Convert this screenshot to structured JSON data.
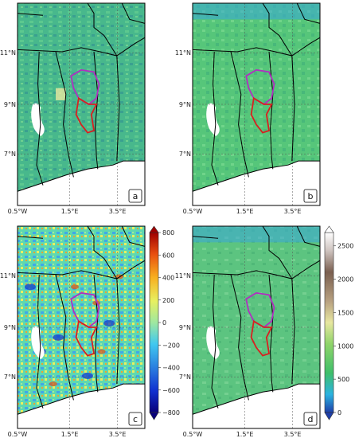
{
  "figure": {
    "panels": [
      {
        "id": "a",
        "label": "a",
        "colorscale": "elevation"
      },
      {
        "id": "b",
        "label": "b",
        "colorscale": "elevation"
      },
      {
        "id": "c",
        "label": "c",
        "colorscale": "difference"
      },
      {
        "id": "d",
        "label": "d",
        "colorscale": "elevation"
      }
    ],
    "lat_ticks": [
      "11°N",
      "9°N",
      "7°N"
    ],
    "lon_ticks": [
      "0.5°W",
      "1.5°E",
      "3.5°E"
    ],
    "colorbar_diff": {
      "ticks": [
        "800",
        "600",
        "400",
        "200",
        "0",
        "−200",
        "−400",
        "−600",
        "−800"
      ],
      "colors": [
        "#08007a",
        "#1030d0",
        "#2a7fe0",
        "#40c8f0",
        "#9fe8a0",
        "#e8f060",
        "#f8b020",
        "#e85010",
        "#a00000"
      ]
    },
    "colorbar_elev": {
      "ticks": [
        "2500",
        "2000",
        "1500",
        "1000",
        "500",
        "0"
      ],
      "colors": [
        "#1f3fa8",
        "#2bb3e0",
        "#3fbf6a",
        "#8fd46a",
        "#e8e7a0",
        "#b7a080",
        "#7a5f50",
        "#cfc4c0",
        "#ffffff"
      ]
    },
    "outline_colors": {
      "upper_basin": "#b030c0",
      "lower_basin": "#d82020",
      "borders": "#000000"
    }
  }
}
